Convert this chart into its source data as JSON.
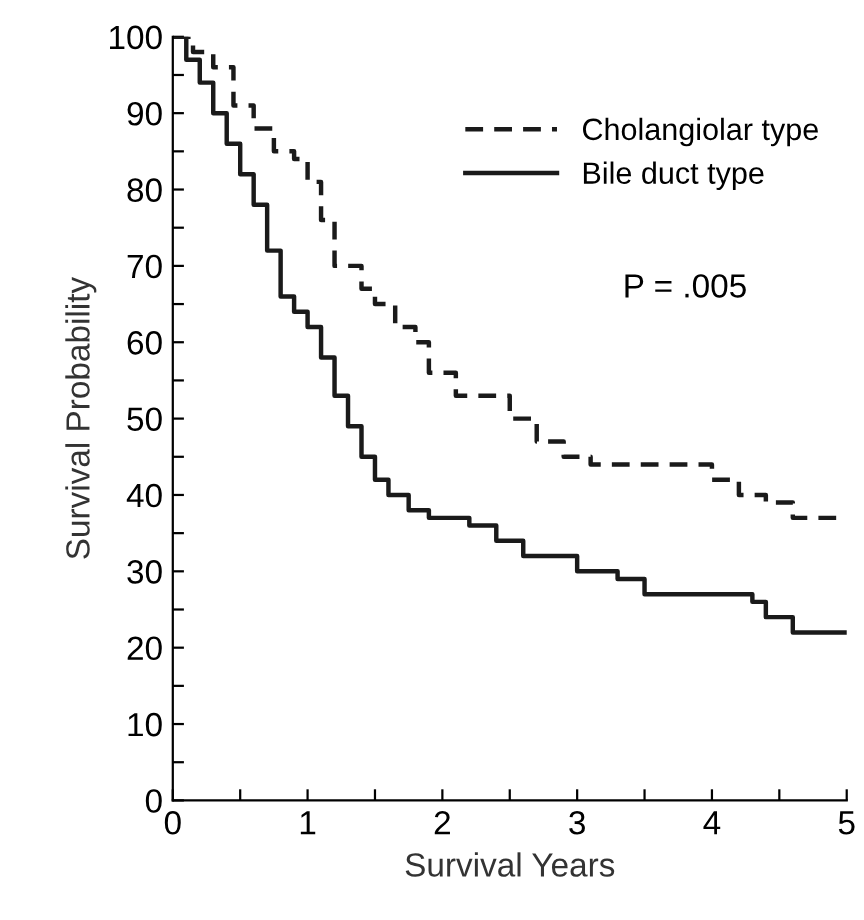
{
  "chart_data": {
    "type": "step",
    "xlabel": "Survival Years",
    "ylabel": "Survival Probability",
    "xlim": [
      0,
      5
    ],
    "ylim": [
      0,
      100
    ],
    "xticks": [
      0,
      {
        "value": 0.5,
        "label": null
      },
      1,
      {
        "value": 1.5,
        "label": null
      },
      2,
      {
        "value": 2.5,
        "label": null
      },
      3,
      {
        "value": 3.5,
        "label": null
      },
      4,
      {
        "value": 4.5,
        "label": null
      },
      5
    ],
    "yticks": [
      0,
      {
        "value": 5,
        "label": null
      },
      10,
      {
        "value": 15,
        "label": null
      },
      20,
      {
        "value": 25,
        "label": null
      },
      30,
      {
        "value": 35,
        "label": null
      },
      40,
      {
        "value": 45,
        "label": null
      },
      50,
      {
        "value": 55,
        "label": null
      },
      60,
      {
        "value": 65,
        "label": null
      },
      70,
      {
        "value": 75,
        "label": null
      },
      80,
      {
        "value": 85,
        "label": null
      },
      90,
      {
        "value": 95,
        "label": null
      },
      100
    ],
    "series": [
      {
        "name": "Cholangiolar type",
        "color": "#1a1a1a",
        "line_style": "dashed",
        "x": [
          0,
          0.15,
          0.3,
          0.45,
          0.6,
          0.75,
          0.9,
          1.0,
          1.1,
          1.2,
          1.4,
          1.5,
          1.65,
          1.8,
          1.9,
          2.1,
          2.5,
          2.7,
          2.9,
          3.1,
          4.0,
          4.2,
          4.4,
          4.6,
          5.0
        ],
        "values": [
          100,
          98,
          96,
          91,
          88,
          85,
          84,
          81,
          76,
          70,
          67,
          65,
          62,
          60,
          56,
          53,
          50,
          47,
          45,
          44,
          42,
          40,
          39,
          37,
          37
        ]
      },
      {
        "name": "Bile duct type",
        "color": "#1a1a1a",
        "line_style": "solid",
        "x": [
          0,
          0.1,
          0.2,
          0.3,
          0.4,
          0.5,
          0.6,
          0.7,
          0.8,
          0.9,
          1.0,
          1.1,
          1.2,
          1.3,
          1.4,
          1.5,
          1.6,
          1.75,
          1.9,
          2.2,
          2.4,
          2.6,
          3.0,
          3.3,
          3.5,
          4.3,
          4.4,
          4.6,
          5.0
        ],
        "values": [
          100,
          97,
          94,
          90,
          86,
          82,
          78,
          72,
          66,
          64,
          62,
          58,
          53,
          49,
          45,
          42,
          40,
          38,
          37,
          36,
          34,
          32,
          30,
          29,
          27,
          26,
          24,
          22,
          22
        ]
      }
    ],
    "legend": "top right",
    "grid": false,
    "marker": "none",
    "annotations": [
      "P = .005"
    ]
  }
}
